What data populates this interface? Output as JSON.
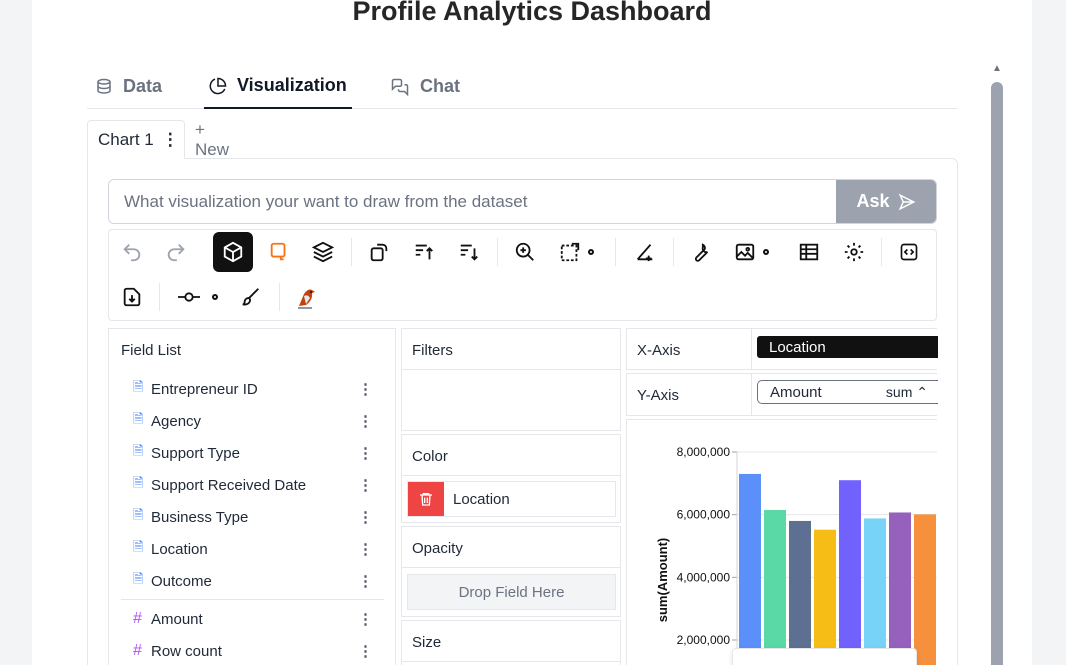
{
  "page": {
    "title": "Profile Analytics Dashboard"
  },
  "tabs": [
    {
      "label": "Data",
      "icon": "database-icon"
    },
    {
      "label": "Visualization",
      "icon": "pie-chart-icon",
      "active": true
    },
    {
      "label": "Chat",
      "icon": "chat-icon"
    }
  ],
  "chart_tabs": {
    "active_label": "Chart 1",
    "menu_icon": "⋮",
    "new_label": "+ New"
  },
  "ask": {
    "placeholder": "What visualization your want to draw from the dataset",
    "button_label": "Ask"
  },
  "toolbar": {
    "icons": [
      "undo-icon",
      "redo-icon",
      "cube-icon",
      "brush-select-icon",
      "layers-icon",
      "transpose-icon",
      "sort-asc-icon",
      "sort-desc-icon",
      "zoom-icon",
      "resize-icon",
      "settings-small-icon",
      "axis-icon",
      "wrench-icon",
      "image-icon",
      "table-icon",
      "gear-icon",
      "code-icon",
      "export-icon",
      "line-icon",
      "paint-brush-icon",
      "bird-icon"
    ]
  },
  "field_list": {
    "title": "Field List",
    "dimensions": [
      "Entrepreneur ID",
      "Agency",
      "Support Type",
      "Support Received Date",
      "Business Type",
      "Location",
      "Outcome"
    ],
    "measures": [
      "Amount",
      "Row count"
    ]
  },
  "encodings": {
    "filters_label": "Filters",
    "color_label": "Color",
    "color_field": "Location",
    "opacity_label": "Opacity",
    "drop_placeholder": "Drop Field Here",
    "size_label": "Size",
    "x_axis_label": "X-Axis",
    "x_field": "Location",
    "y_axis_label": "Y-Axis",
    "y_field": "Amount",
    "y_agg": "sum"
  },
  "chart_data": {
    "type": "bar",
    "ylabel": "sum(Amount)",
    "ylim": [
      1500000,
      8000000
    ],
    "yticks": [
      "8,000,000",
      "6,000,000",
      "4,000,000",
      "2,000,000"
    ],
    "ytick_values": [
      8000000,
      6000000,
      4000000,
      2000000
    ],
    "values": [
      7300000,
      6150000,
      5800000,
      5520000,
      7100000,
      5880000,
      6070000,
      6010000
    ],
    "colors": [
      "#5b8ff9",
      "#5ad8a6",
      "#5d7092",
      "#f6bd16",
      "#7262fd",
      "#78d3f8",
      "#9661bc",
      "#f6903d"
    ]
  }
}
